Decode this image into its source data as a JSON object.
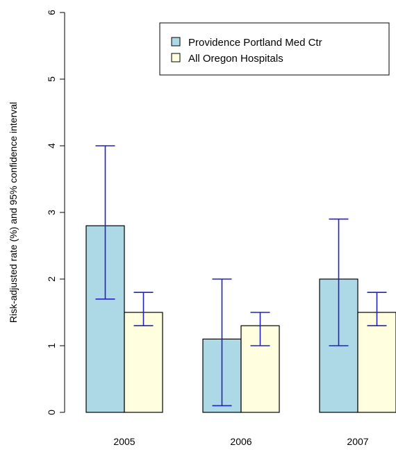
{
  "chart_data": {
    "type": "bar",
    "title": "",
    "xlabel": "",
    "ylabel": "Risk-adjusted rate (%) and 95% confidence interval",
    "categories": [
      "2005",
      "2006",
      "2007"
    ],
    "ylim": [
      0,
      6
    ],
    "yticks": [
      "0",
      "1",
      "2",
      "3",
      "4",
      "5",
      "6"
    ],
    "grid": false,
    "legend_position": "top-right",
    "series": [
      {
        "name": "Providence Portland Med Ctr",
        "color": "#add8e6",
        "values": [
          2.8,
          1.1,
          2.0
        ],
        "ci_low": [
          1.7,
          0.1,
          1.0
        ],
        "ci_high": [
          4.0,
          2.0,
          2.9
        ]
      },
      {
        "name": "All Oregon Hospitals",
        "color": "#ffffe0",
        "values": [
          1.5,
          1.3,
          1.5
        ],
        "ci_low": [
          1.3,
          1.0,
          1.3
        ],
        "ci_high": [
          1.8,
          1.5,
          1.8
        ]
      }
    ],
    "error_bar_color": "#2222bb"
  }
}
